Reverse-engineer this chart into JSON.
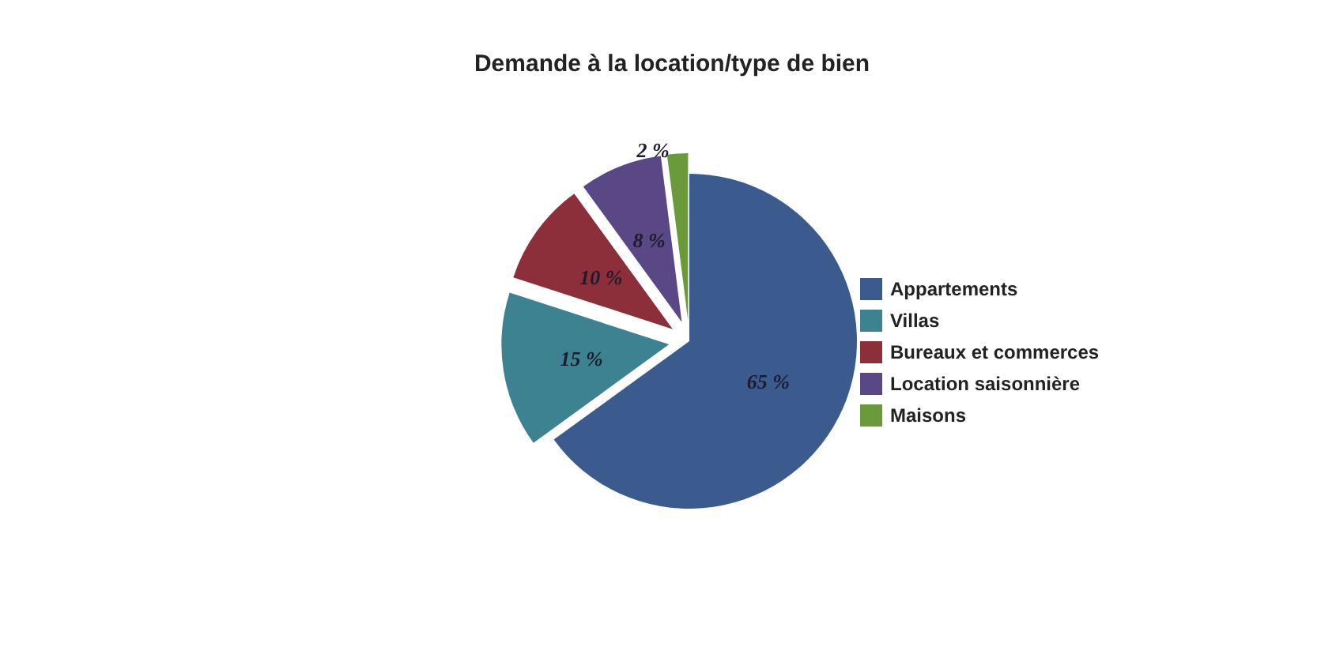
{
  "chart_data": {
    "type": "pie",
    "title": "Demande à la location/type de bien",
    "categories": [
      "Appartements",
      "Villas",
      "Bureaux et commerces",
      "Location saisonnière",
      "Maisons"
    ],
    "values": [
      65,
      15,
      10,
      8,
      2
    ],
    "colors": [
      "#3b5b8f",
      "#3d8290",
      "#8c2f3a",
      "#5a4785",
      "#6b9a3b"
    ],
    "value_labels": [
      "65 %",
      "15 %",
      "10 %",
      "8 %",
      "2 %"
    ],
    "legend": "right"
  }
}
